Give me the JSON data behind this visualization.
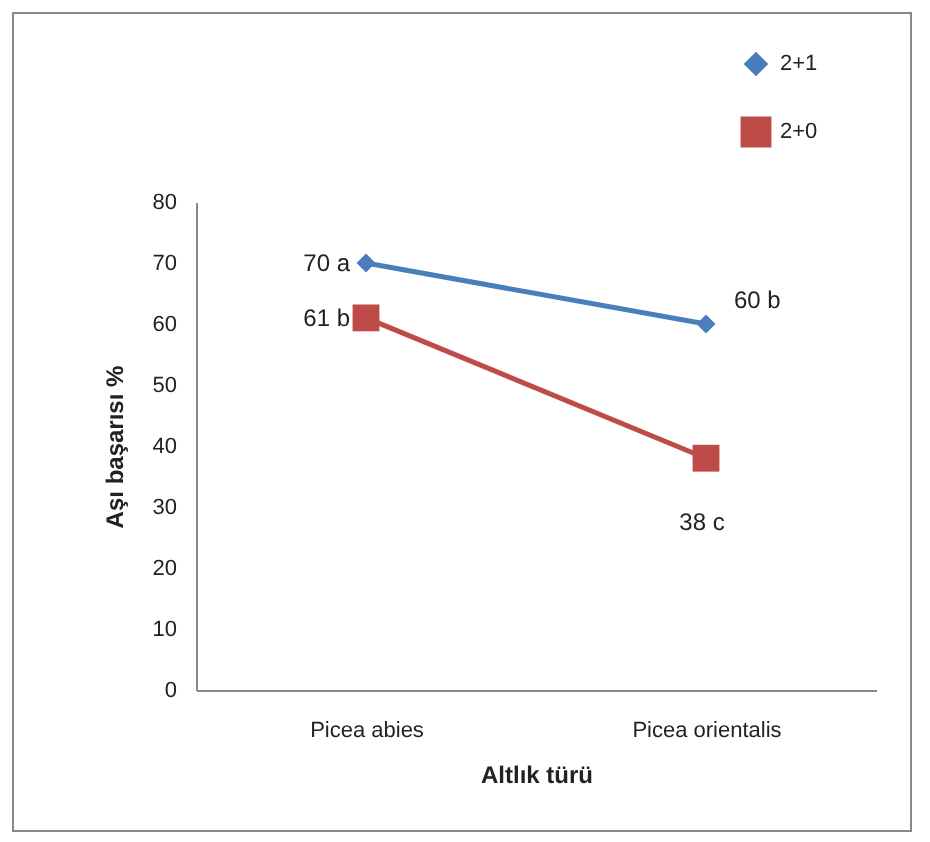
{
  "chart_data": {
    "type": "line",
    "xlabel": "Altlık türü",
    "ylabel": "Aşı başarısı %",
    "categories": [
      "Picea abies",
      "Picea orientalis"
    ],
    "series": [
      {
        "name": "2+1",
        "color": "#4a7ebb",
        "marker": "diamond",
        "values": [
          70,
          60
        ],
        "value_labels": [
          "70 a",
          "60 b"
        ]
      },
      {
        "name": "2+0",
        "color": "#be4b48",
        "marker": "square",
        "values": [
          61,
          38
        ],
        "value_labels": [
          "61 b",
          "38 c"
        ]
      }
    ],
    "ylim": [
      0,
      80
    ],
    "yticks": [
      0,
      10,
      20,
      30,
      40,
      50,
      60,
      70,
      80
    ],
    "legend": "top right",
    "line_style": "solid"
  }
}
